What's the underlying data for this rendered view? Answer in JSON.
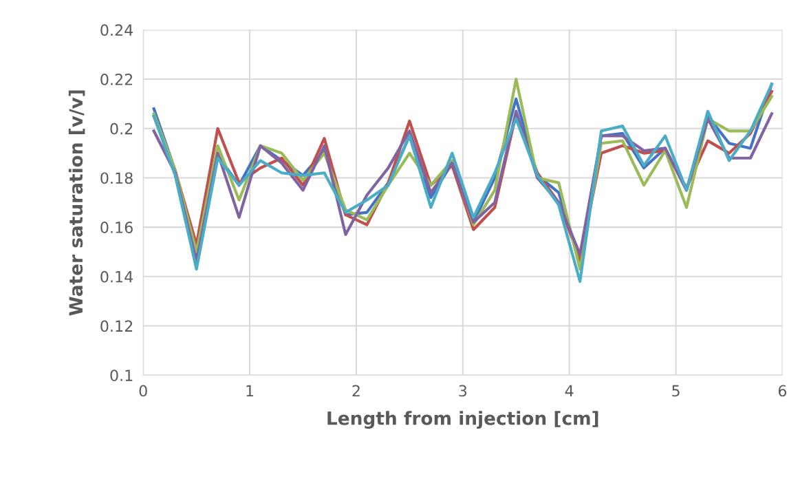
{
  "chart_data": {
    "type": "line",
    "xlabel": "Length from injection [cm]",
    "ylabel": "Water saturation [v/v]",
    "x": [
      0.1,
      0.3,
      0.5,
      0.7,
      0.9,
      1.1,
      1.3,
      1.5,
      1.7,
      1.9,
      2.1,
      2.3,
      2.5,
      2.7,
      2.9,
      3.1,
      3.3,
      3.5,
      3.7,
      3.9,
      4.1,
      4.3,
      4.5,
      4.7,
      4.9,
      5.1,
      5.3,
      5.5,
      5.7,
      5.9
    ],
    "series": [
      {
        "color": "#4472c4",
        "values": [
          0.208,
          0.183,
          0.147,
          0.189,
          0.177,
          0.193,
          0.187,
          0.181,
          0.191,
          0.165,
          0.166,
          0.178,
          0.197,
          0.172,
          0.186,
          0.162,
          0.18,
          0.212,
          0.181,
          0.174,
          0.146,
          0.197,
          0.198,
          0.184,
          0.192,
          0.175,
          0.205,
          0.194,
          0.192,
          0.218
        ]
      },
      {
        "color": "#c0504d",
        "values": [
          0.205,
          0.183,
          0.153,
          0.2,
          0.178,
          0.184,
          0.188,
          0.177,
          0.196,
          0.165,
          0.161,
          0.178,
          0.203,
          0.177,
          0.185,
          0.159,
          0.168,
          0.206,
          0.182,
          0.17,
          0.147,
          0.19,
          0.193,
          0.19,
          0.191,
          0.176,
          0.195,
          0.19,
          0.198,
          0.215
        ]
      },
      {
        "color": "#9bbb59",
        "values": [
          0.206,
          0.183,
          0.15,
          0.193,
          0.171,
          0.193,
          0.19,
          0.179,
          0.19,
          0.167,
          0.163,
          0.177,
          0.19,
          0.177,
          0.187,
          0.161,
          0.175,
          0.22,
          0.18,
          0.178,
          0.143,
          0.194,
          0.195,
          0.177,
          0.191,
          0.168,
          0.204,
          0.199,
          0.199,
          0.213
        ]
      },
      {
        "color": "#8064a2",
        "values": [
          0.199,
          0.182,
          0.146,
          0.19,
          0.164,
          0.193,
          0.186,
          0.175,
          0.193,
          0.157,
          0.173,
          0.184,
          0.199,
          0.174,
          0.186,
          0.162,
          0.17,
          0.207,
          0.18,
          0.17,
          0.149,
          0.197,
          0.197,
          0.191,
          0.192,
          0.175,
          0.204,
          0.188,
          0.188,
          0.206
        ]
      },
      {
        "color": "#4bacc6",
        "values": [
          0.205,
          0.181,
          0.143,
          0.188,
          0.177,
          0.187,
          0.182,
          0.181,
          0.182,
          0.166,
          0.171,
          0.177,
          0.197,
          0.168,
          0.19,
          0.164,
          0.182,
          0.204,
          0.181,
          0.169,
          0.138,
          0.199,
          0.201,
          0.185,
          0.197,
          0.175,
          0.207,
          0.187,
          0.199,
          0.218
        ]
      }
    ],
    "xlim": [
      0,
      6
    ],
    "xticks": [
      0,
      1,
      2,
      3,
      4,
      5,
      6
    ],
    "ylim": [
      0.1,
      0.24
    ],
    "yticks": [
      0.1,
      0.12,
      0.14,
      0.16,
      0.18,
      0.2,
      0.22,
      0.24
    ],
    "grid": true,
    "marker": "none",
    "line_style": "solid"
  }
}
